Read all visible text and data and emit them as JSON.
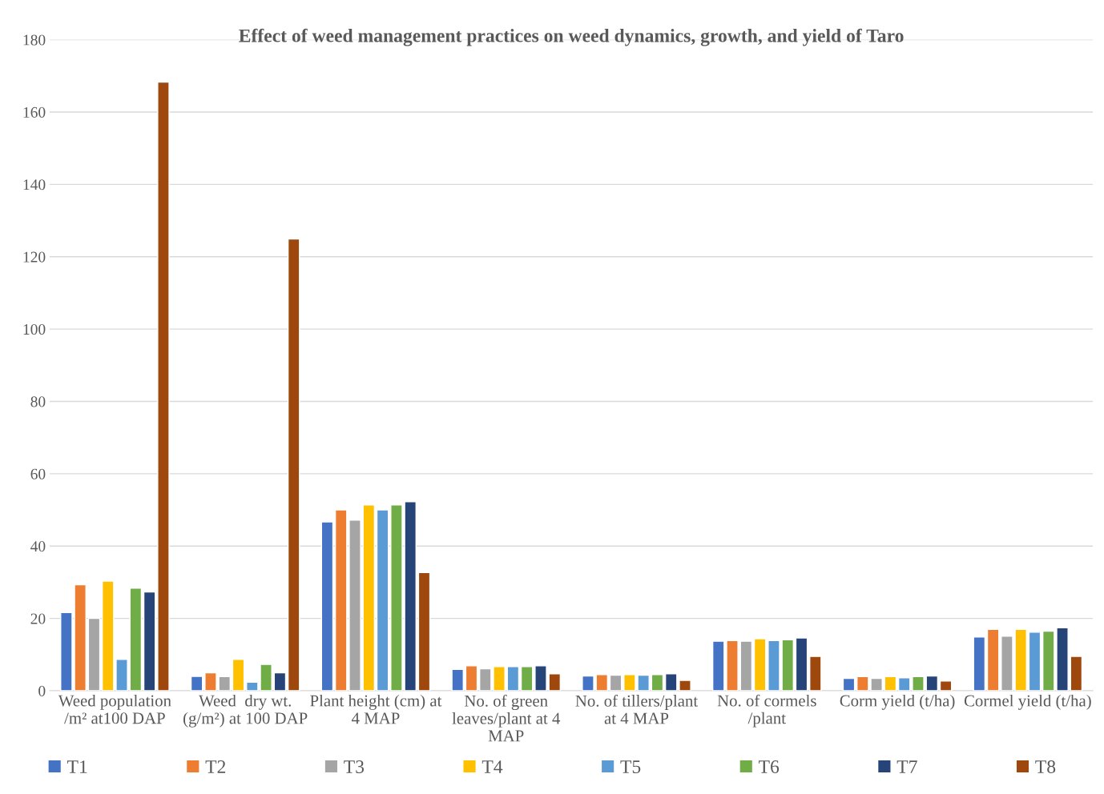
{
  "chart_data": {
    "type": "bar",
    "title": "Effect of weed management practices on weed dynamics, growth, and yield of Taro",
    "categories": [
      "Weed population\n/m² at100 DAP",
      "Weed  dry wt.\n(g/m²) at 100 DAP",
      "Plant height (cm) at\n4 MAP",
      "No. of green\nleaves/plant at 4\nMAP",
      "No. of tillers/plant\nat 4 MAP",
      "No. of cormels\n/plant",
      "Corm yield (t/ha)",
      "Cormel yield (t/ha)"
    ],
    "series": [
      {
        "name": "T1",
        "color": "#4472c4",
        "values": [
          21.6,
          4.0,
          46.7,
          5.9,
          4.1,
          13.7,
          3.4,
          14.9
        ]
      },
      {
        "name": "T2",
        "color": "#ed7d31",
        "values": [
          29.3,
          5.0,
          50.0,
          6.9,
          4.5,
          13.9,
          3.9,
          17.0
        ]
      },
      {
        "name": "T3",
        "color": "#a5a5a5",
        "values": [
          20.0,
          3.9,
          47.2,
          6.1,
          4.3,
          13.7,
          3.4,
          15.1
        ]
      },
      {
        "name": "T4",
        "color": "#ffc000",
        "values": [
          30.3,
          8.7,
          51.4,
          6.7,
          4.5,
          14.4,
          3.9,
          17.0
        ]
      },
      {
        "name": "T5",
        "color": "#5b9bd5",
        "values": [
          8.7,
          2.4,
          50.0,
          6.7,
          4.3,
          13.9,
          3.6,
          16.2
        ]
      },
      {
        "name": "T6",
        "color": "#70ad47",
        "values": [
          28.4,
          7.3,
          51.4,
          6.7,
          4.5,
          14.1,
          3.9,
          16.5
        ]
      },
      {
        "name": "T7",
        "color": "#264478",
        "values": [
          27.3,
          5.0,
          52.3,
          6.9,
          4.7,
          14.6,
          4.1,
          17.4
        ]
      },
      {
        "name": "T8",
        "color": "#9e480e",
        "values": [
          168.3,
          124.9,
          32.7,
          4.7,
          2.9,
          9.5,
          2.7,
          9.5
        ]
      }
    ],
    "ylim": [
      0,
      180
    ],
    "yticks": [
      0,
      20,
      40,
      60,
      80,
      100,
      120,
      140,
      160,
      180
    ],
    "grid": "y",
    "legend": "bottom"
  }
}
